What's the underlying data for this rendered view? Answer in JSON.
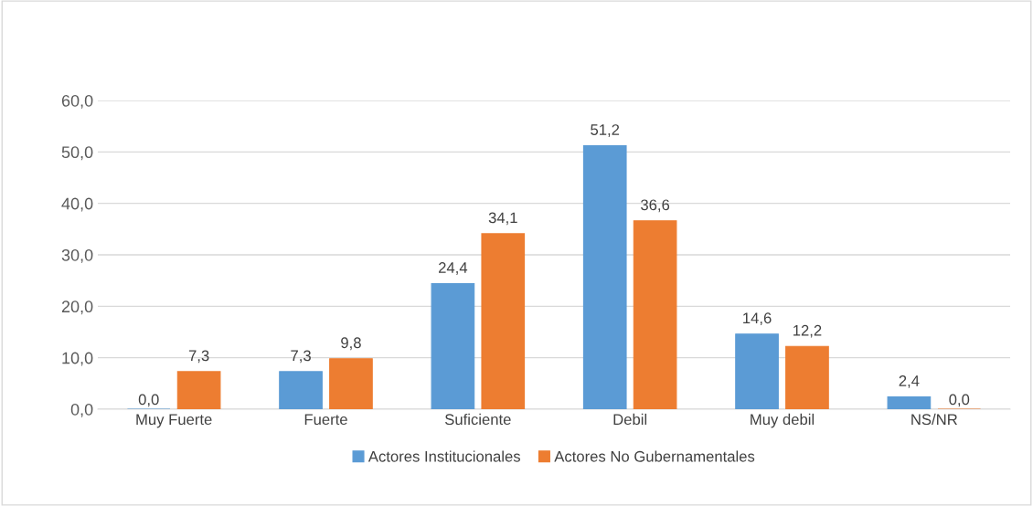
{
  "chart_data": {
    "type": "bar",
    "categories": [
      "Muy Fuerte",
      "Fuerte",
      "Suficiente",
      "Debil",
      "Muy debil",
      "NS/NR"
    ],
    "series": [
      {
        "name": "Actores Institucionales",
        "color": "#5b9bd5",
        "values": [
          0.0,
          7.3,
          24.4,
          51.2,
          14.6,
          2.4
        ],
        "value_labels": [
          "0,0",
          "7,3",
          "24,4",
          "51,2",
          "14,6",
          "2,4"
        ]
      },
      {
        "name": "Actores No Gubernamentales",
        "color": "#ed7d31",
        "values": [
          7.3,
          9.8,
          34.1,
          36.6,
          12.2,
          0.0
        ],
        "value_labels": [
          "7,3",
          "9,8",
          "34,1",
          "36,6",
          "12,2",
          "0,0"
        ]
      }
    ],
    "ylim": [
      0,
      60
    ],
    "yticks": [
      {
        "value": 0,
        "label": "0,0"
      },
      {
        "value": 10,
        "label": "10,0"
      },
      {
        "value": 20,
        "label": "20,0"
      },
      {
        "value": 30,
        "label": "30,0"
      },
      {
        "value": 40,
        "label": "40,0"
      },
      {
        "value": 50,
        "label": "50,0"
      },
      {
        "value": 60,
        "label": "60,0"
      }
    ],
    "grid": "y",
    "legend": "bottom"
  }
}
